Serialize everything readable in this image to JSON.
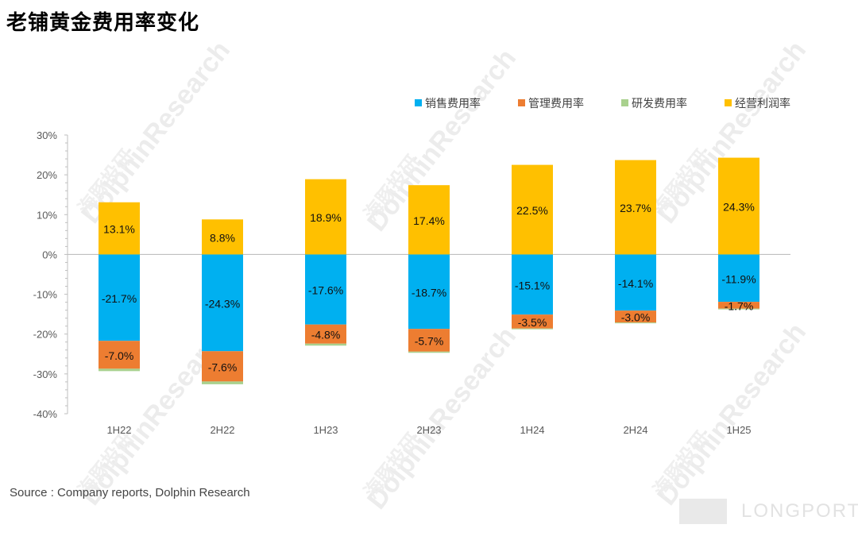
{
  "title": "老铺黄金费用率变化",
  "source": "Source : Company reports, Dolphin Research",
  "watermark": {
    "text": "DolphinResearch",
    "text_cn": "海豚投研"
  },
  "brand": {
    "text": "LONGPORT"
  },
  "colors": {
    "selling": "#00B0F0",
    "admin": "#ED7D31",
    "rnd": "#A9D18E",
    "op_margin": "#FFC000",
    "axis": "#bfbfbf",
    "tick_text": "#595959"
  },
  "chart_data": {
    "type": "bar",
    "stacked": true,
    "title": "老铺黄金费用率变化",
    "categories": [
      "1H22",
      "2H22",
      "1H23",
      "2H23",
      "1H24",
      "2H24",
      "1H25"
    ],
    "ylim": [
      -40,
      30
    ],
    "yticks": [
      "30%",
      "20%",
      "10%",
      "0%",
      "-10%",
      "-20%",
      "-30%",
      "-40%"
    ],
    "legend_position": "top-right",
    "grid": false,
    "series": [
      {
        "name": "销售费用率",
        "color_key": "selling",
        "values": [
          -21.7,
          -24.3,
          -17.6,
          -18.7,
          -15.1,
          -14.1,
          -11.9
        ],
        "labels": [
          "-21.7%",
          "-24.3%",
          "-17.6%",
          "-18.7%",
          "-15.1%",
          "-14.1%",
          "-11.9%"
        ]
      },
      {
        "name": "管理费用率",
        "color_key": "admin",
        "values": [
          -7.0,
          -7.6,
          -4.8,
          -5.7,
          -3.5,
          -3.0,
          -1.7
        ],
        "labels": [
          "-7.0%",
          "-7.6%",
          "-4.8%",
          "-5.7%",
          "-3.5%",
          "-3.0%",
          "-1.7%"
        ]
      },
      {
        "name": "研发费用率",
        "color_key": "rnd",
        "values": [
          -0.6,
          -0.7,
          -0.5,
          -0.3,
          -0.1,
          -0.1,
          -0.1
        ],
        "labels": [
          "",
          "",
          "",
          "",
          "",
          "",
          ""
        ]
      },
      {
        "name": "经营利润率",
        "color_key": "op_margin",
        "values": [
          13.1,
          8.8,
          18.9,
          17.4,
          22.5,
          23.7,
          24.3
        ],
        "labels": [
          "13.1%",
          "8.8%",
          "18.9%",
          "17.4%",
          "22.5%",
          "23.7%",
          "24.3%"
        ]
      }
    ]
  }
}
